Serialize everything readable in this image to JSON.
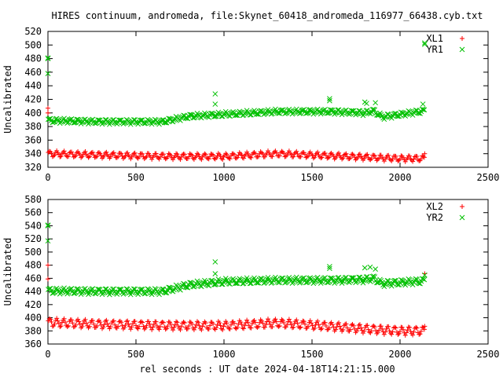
{
  "title": "HIRES continuum, andromeda, file:Skynet_60418_andromeda_116977_66438.cyb.txt",
  "xlabel": "rel seconds : UT date 2024-04-18T14:21:15.000",
  "colors": {
    "x_series": "#ff0000",
    "y_series": "#00c000",
    "axis": "#000000"
  },
  "chart_data": [
    {
      "type": "scatter",
      "ylabel": "Uncalibrated",
      "xlim": [
        0,
        2500
      ],
      "ylim": [
        320,
        520
      ],
      "xticks": [
        0,
        500,
        1000,
        1500,
        2000,
        2500
      ],
      "yticks": [
        320,
        340,
        360,
        380,
        400,
        420,
        440,
        460,
        480,
        500,
        520
      ],
      "grid": false,
      "legend_position": "top-right",
      "series": [
        {
          "name": "XL1",
          "marker": "plus",
          "color": "#ff0000",
          "base": [
            [
              0,
              340
            ],
            [
              300,
              338
            ],
            [
              700,
              336
            ],
            [
              1000,
              336
            ],
            [
              1300,
              340
            ],
            [
              1500,
              338
            ],
            [
              1800,
              335
            ],
            [
              2000,
              333
            ],
            [
              2140,
              333
            ]
          ],
          "amplitude": 4,
          "period": 40,
          "outliers": [
            [
              0,
              407
            ],
            [
              0,
              400
            ],
            [
              2140,
              340
            ]
          ]
        },
        {
          "name": "YR1",
          "marker": "cross",
          "color": "#00c000",
          "base": [
            [
              0,
              389
            ],
            [
              300,
              387
            ],
            [
              650,
              387
            ],
            [
              800,
              395
            ],
            [
              1000,
              398
            ],
            [
              1300,
              402
            ],
            [
              1600,
              402
            ],
            [
              1800,
              400
            ],
            [
              1850,
              403
            ],
            [
              1900,
              394
            ],
            [
              2140,
              403
            ]
          ],
          "amplitude": 3,
          "period": 40,
          "outliers": [
            [
              0,
              481
            ],
            [
              0,
              480
            ],
            [
              0,
              458
            ],
            [
              2140,
              501
            ],
            [
              2140,
              503
            ],
            [
              950,
              428
            ],
            [
              950,
              413
            ],
            [
              1600,
              418
            ],
            [
              1600,
              421
            ],
            [
              1800,
              416
            ],
            [
              1810,
              414
            ],
            [
              1860,
              415
            ],
            [
              2130,
              413
            ]
          ]
        }
      ]
    },
    {
      "type": "scatter",
      "ylabel": "Uncalibrated",
      "xlim": [
        0,
        2500
      ],
      "ylim": [
        360,
        580
      ],
      "xticks": [
        0,
        500,
        1000,
        1500,
        2000,
        2500
      ],
      "yticks": [
        360,
        380,
        400,
        420,
        440,
        460,
        480,
        500,
        520,
        540,
        560,
        580
      ],
      "grid": false,
      "legend_position": "top-right",
      "series": [
        {
          "name": "XL2",
          "marker": "plus",
          "color": "#ff0000",
          "base": [
            [
              0,
              393
            ],
            [
              300,
              390
            ],
            [
              700,
              388
            ],
            [
              1000,
              388
            ],
            [
              1300,
              392
            ],
            [
              1500,
              389
            ],
            [
              1800,
              383
            ],
            [
              2000,
              380
            ],
            [
              2140,
              380
            ]
          ],
          "amplitude": 6,
          "period": 40,
          "outliers": [
            [
              0,
              480
            ],
            [
              0,
              459
            ],
            [
              2140,
              467
            ],
            [
              2140,
              387
            ]
          ]
        },
        {
          "name": "YR2",
          "marker": "cross",
          "color": "#00c000",
          "base": [
            [
              0,
              441
            ],
            [
              300,
              440
            ],
            [
              650,
              440
            ],
            [
              800,
              450
            ],
            [
              1000,
              455
            ],
            [
              1300,
              457
            ],
            [
              1600,
              457
            ],
            [
              1800,
              458
            ],
            [
              1850,
              460
            ],
            [
              1900,
              452
            ],
            [
              2140,
              456
            ]
          ],
          "amplitude": 4,
          "period": 40,
          "outliers": [
            [
              0,
              541
            ],
            [
              0,
              540
            ],
            [
              0,
              517
            ],
            [
              950,
              485
            ],
            [
              950,
              467
            ],
            [
              1600,
              478
            ],
            [
              1600,
              475
            ],
            [
              1800,
              476
            ],
            [
              1830,
              477
            ],
            [
              1860,
              474
            ],
            [
              2140,
              465
            ]
          ]
        }
      ]
    }
  ]
}
